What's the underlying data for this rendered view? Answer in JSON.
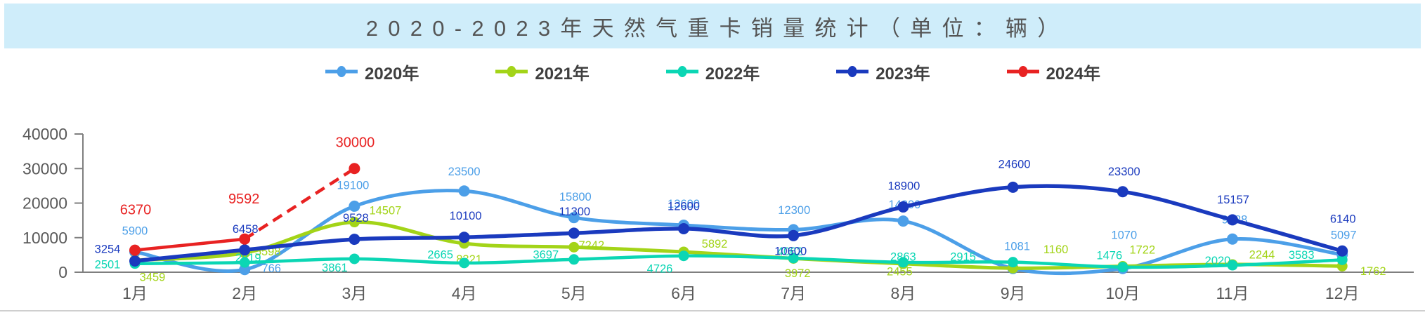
{
  "banner": {
    "title": "2020-2023年天然气重卡销量统计（单位：辆）"
  },
  "chart_data": {
    "type": "line",
    "title": "2020-2023年天然气重卡销量统计（单位：辆）",
    "categories": [
      "1月",
      "2月",
      "3月",
      "4月",
      "5月",
      "6月",
      "7月",
      "8月",
      "9月",
      "10月",
      "11月",
      "12月"
    ],
    "series": [
      {
        "name": "2020年",
        "color": "#4C9FE8",
        "values": [
          5900,
          766,
          19100,
          23500,
          15800,
          13600,
          12300,
          14800,
          1081,
          1070,
          9588,
          5097
        ]
      },
      {
        "name": "2021年",
        "color": "#A3D418",
        "values": [
          3459,
          5598,
          14507,
          8321,
          7242,
          5892,
          3972,
          2455,
          1160,
          1722,
          2244,
          1762
        ]
      },
      {
        "name": "2022年",
        "color": "#0BD6B4",
        "values": [
          2501,
          2819,
          3861,
          2665,
          3697,
          4726,
          4062,
          2863,
          2915,
          1476,
          2020,
          3583
        ]
      },
      {
        "name": "2023年",
        "color": "#1A3ABE",
        "values": [
          3254,
          6458,
          9528,
          10100,
          11300,
          12600,
          10600,
          18900,
          24600,
          23300,
          15157,
          6140
        ]
      },
      {
        "name": "2024年",
        "color": "#E82222",
        "values": [
          6370,
          9592,
          30000
        ],
        "line_style": "solid_then_dashed",
        "dashed_from_index": 1
      }
    ],
    "ylim": [
      0,
      40000
    ],
    "yticks": [
      0,
      10000,
      20000,
      30000,
      40000
    ],
    "xlabel": "",
    "ylabel": "",
    "grid": false,
    "legend_position": "top",
    "data_labels": true
  }
}
